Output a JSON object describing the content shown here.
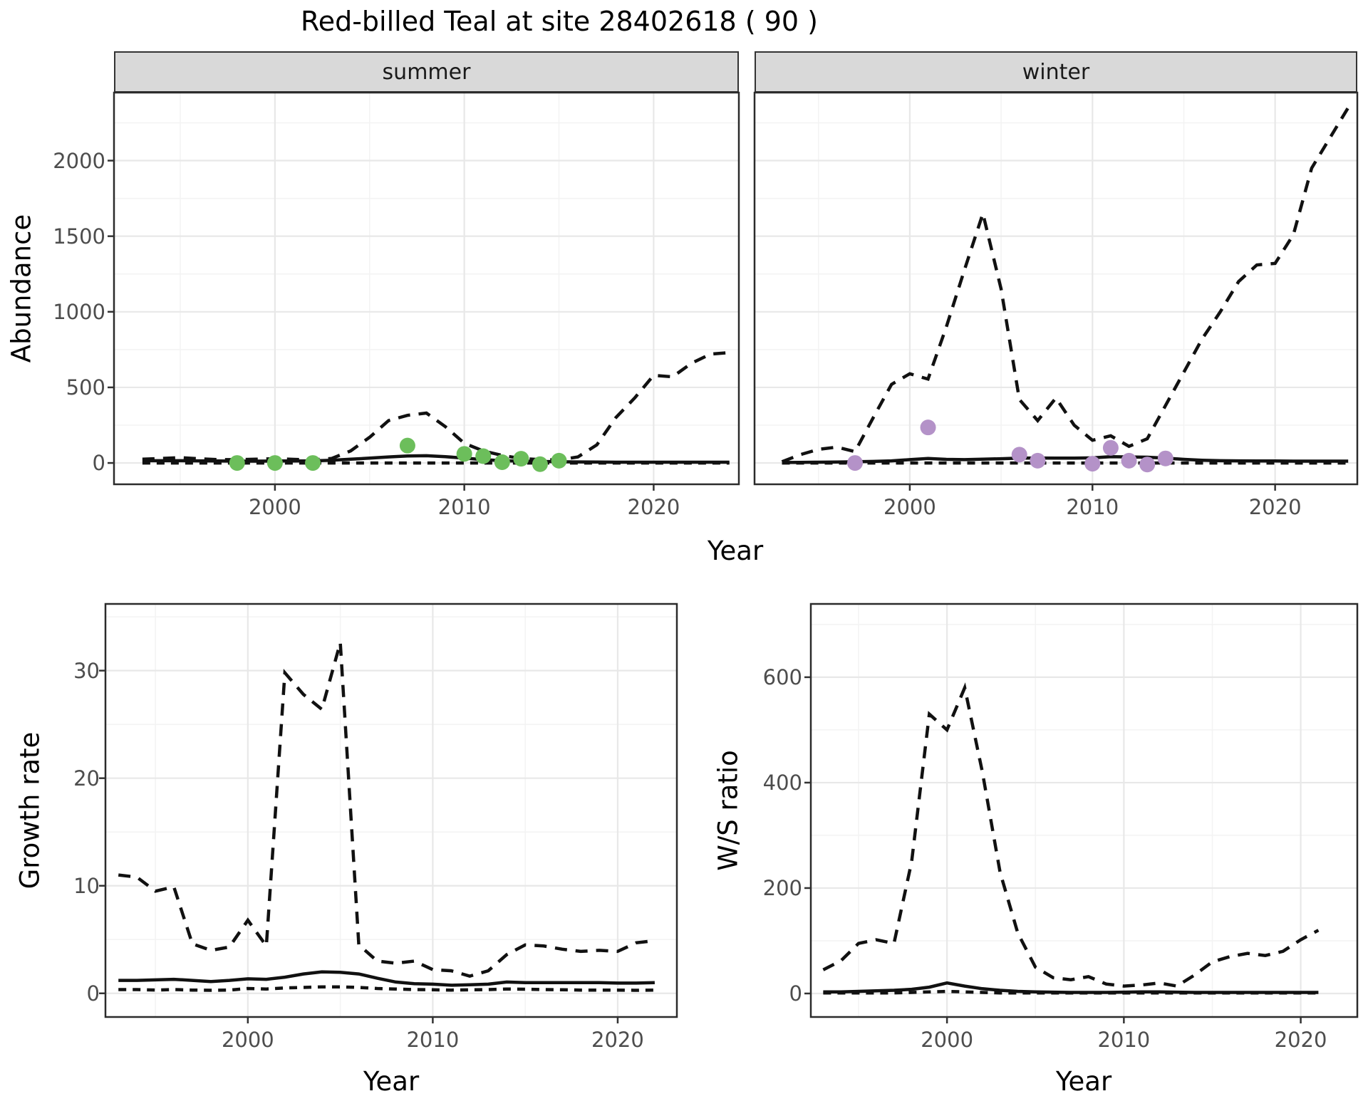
{
  "title": "Red-billed Teal at site 28402618 ( 90 )",
  "colors": {
    "summer_point": "#6CBE5B",
    "winter_point": "#B492C8",
    "line": "#111111",
    "grid_major": "#E8E8E8",
    "grid_minor": "#F3F3F3",
    "strip_bg": "#D9D9D9",
    "panel_border": "#2B2B2B",
    "tick_mark": "#333333",
    "tick_label": "#4D4D4D"
  },
  "chart_data": [
    {
      "type": "line",
      "facet": "summer",
      "xlabel": "Year",
      "ylabel": "Abundance",
      "xlim": [
        1991.5,
        2024.5
      ],
      "ylim": [
        -141,
        2450
      ],
      "x_ticks": [
        2000,
        2010,
        2020
      ],
      "y_ticks": [
        0,
        500,
        1000,
        1500,
        2000
      ],
      "years": [
        1993,
        1994,
        1995,
        1996,
        1997,
        1998,
        1999,
        2000,
        2001,
        2002,
        2003,
        2004,
        2005,
        2006,
        2007,
        2008,
        2009,
        2010,
        2011,
        2012,
        2013,
        2014,
        2015,
        2016,
        2017,
        2018,
        2019,
        2020,
        2021,
        2022,
        2023,
        2024
      ],
      "series": [
        {
          "name": "median",
          "style": "solid",
          "values": [
            15,
            15,
            15,
            14,
            13,
            12,
            12,
            13,
            13,
            14,
            18,
            25,
            32,
            40,
            46,
            48,
            42,
            32,
            22,
            15,
            12,
            10,
            8,
            7,
            6,
            5,
            5,
            5,
            5,
            5,
            5,
            5
          ]
        },
        {
          "name": "upper",
          "style": "dashed",
          "values": [
            25,
            30,
            35,
            28,
            22,
            22,
            25,
            28,
            24,
            20,
            30,
            80,
            170,
            280,
            315,
            330,
            240,
            130,
            80,
            50,
            30,
            22,
            20,
            40,
            120,
            300,
            430,
            580,
            570,
            660,
            720,
            730
          ]
        },
        {
          "name": "lower",
          "style": "dashed-short",
          "values": [
            0,
            0,
            0,
            0,
            0,
            0,
            0,
            0,
            0,
            0,
            0,
            0,
            0,
            0,
            0,
            0,
            0,
            0,
            0,
            0,
            0,
            0,
            0,
            0,
            0,
            0,
            0,
            0,
            0,
            0,
            0,
            0
          ]
        }
      ],
      "points": {
        "color": "#6CBE5B",
        "data": [
          [
            1998,
            0
          ],
          [
            2000,
            0
          ],
          [
            2002,
            0
          ],
          [
            2007,
            115
          ],
          [
            2010,
            60
          ],
          [
            2011,
            45
          ],
          [
            2012,
            5
          ],
          [
            2013,
            28
          ],
          [
            2014,
            -8
          ],
          [
            2015,
            15
          ]
        ]
      }
    },
    {
      "type": "line",
      "facet": "winter",
      "xlabel": "Year",
      "ylabel": "Abundance",
      "xlim": [
        1991.5,
        2024.5
      ],
      "ylim": [
        -141,
        2450
      ],
      "x_ticks": [
        2000,
        2010,
        2020
      ],
      "y_ticks": [
        0,
        500,
        1000,
        1500,
        2000
      ],
      "years": [
        1993,
        1994,
        1995,
        1996,
        1997,
        1998,
        1999,
        2000,
        2001,
        2002,
        2003,
        2004,
        2005,
        2006,
        2007,
        2008,
        2009,
        2010,
        2011,
        2012,
        2013,
        2014,
        2015,
        2016,
        2017,
        2018,
        2019,
        2020,
        2021,
        2022,
        2023,
        2024
      ],
      "series": [
        {
          "name": "median",
          "style": "solid",
          "values": [
            3,
            4,
            5,
            6,
            8,
            10,
            14,
            22,
            30,
            24,
            22,
            25,
            28,
            32,
            33,
            32,
            32,
            34,
            42,
            40,
            38,
            32,
            24,
            18,
            15,
            14,
            13,
            13,
            12,
            12,
            12,
            12
          ]
        },
        {
          "name": "upper",
          "style": "dashed",
          "values": [
            8,
            55,
            90,
            105,
            75,
            300,
            520,
            590,
            555,
            900,
            1280,
            1650,
            1150,
            420,
            280,
            430,
            250,
            150,
            180,
            110,
            160,
            380,
            600,
            820,
            1000,
            1200,
            1310,
            1320,
            1510,
            1950,
            2150,
            2350
          ]
        },
        {
          "name": "lower",
          "style": "dashed-short",
          "values": [
            0,
            0,
            0,
            0,
            0,
            0,
            0,
            0,
            0,
            0,
            0,
            0,
            0,
            0,
            0,
            0,
            0,
            0,
            0,
            0,
            0,
            0,
            0,
            0,
            0,
            0,
            0,
            0,
            0,
            0,
            0,
            0
          ]
        }
      ],
      "points": {
        "color": "#B492C8",
        "data": [
          [
            1997,
            0
          ],
          [
            2001,
            235
          ],
          [
            2006,
            55
          ],
          [
            2007,
            15
          ],
          [
            2010,
            -5
          ],
          [
            2011,
            100
          ],
          [
            2012,
            15
          ],
          [
            2013,
            -10
          ],
          [
            2014,
            30
          ]
        ]
      }
    },
    {
      "type": "line",
      "facet": "",
      "xlabel": "Year",
      "ylabel": "Growth rate",
      "xlim": [
        1992.3,
        2023.2
      ],
      "ylim": [
        -2.2,
        36.2
      ],
      "x_ticks": [
        2000,
        2010,
        2020
      ],
      "y_ticks": [
        0,
        10,
        20,
        30
      ],
      "years": [
        1993,
        1994,
        1995,
        1996,
        1997,
        1998,
        1999,
        2000,
        2001,
        2002,
        2003,
        2004,
        2005,
        2006,
        2007,
        2008,
        2009,
        2010,
        2011,
        2012,
        2013,
        2014,
        2015,
        2016,
        2017,
        2018,
        2019,
        2020,
        2021,
        2022
      ],
      "series": [
        {
          "name": "median",
          "style": "solid",
          "values": [
            1.2,
            1.2,
            1.25,
            1.3,
            1.2,
            1.1,
            1.2,
            1.35,
            1.3,
            1.5,
            1.8,
            2.0,
            1.95,
            1.8,
            1.4,
            1.05,
            0.9,
            0.85,
            0.75,
            0.8,
            0.85,
            1.05,
            1.0,
            1.0,
            1.0,
            1.0,
            1.0,
            0.95,
            0.95,
            1.0
          ]
        },
        {
          "name": "upper",
          "style": "dashed",
          "values": [
            11,
            10.8,
            9.5,
            9.9,
            4.6,
            4.0,
            4.3,
            6.8,
            4.4,
            29.8,
            27.8,
            26.4,
            32.6,
            4.5,
            3.0,
            2.8,
            3.0,
            2.2,
            2.1,
            1.6,
            2.1,
            3.6,
            4.5,
            4.4,
            4.1,
            3.9,
            4.0,
            3.9,
            4.7,
            4.9
          ]
        },
        {
          "name": "lower",
          "style": "dashed-short",
          "values": [
            0.35,
            0.35,
            0.3,
            0.35,
            0.3,
            0.28,
            0.3,
            0.45,
            0.4,
            0.5,
            0.55,
            0.6,
            0.6,
            0.55,
            0.45,
            0.4,
            0.35,
            0.33,
            0.3,
            0.32,
            0.35,
            0.4,
            0.38,
            0.35,
            0.33,
            0.3,
            0.3,
            0.3,
            0.28,
            0.3
          ]
        }
      ],
      "points": null
    },
    {
      "type": "line",
      "facet": "",
      "xlabel": "Year",
      "ylabel": "W/S ratio",
      "xlim": [
        1992.3,
        2023.2
      ],
      "ylim": [
        -44.6,
        739
      ],
      "x_ticks": [
        2000,
        2010,
        2020
      ],
      "y_ticks": [
        0,
        200,
        400,
        600
      ],
      "years": [
        1993,
        1994,
        1995,
        1996,
        1997,
        1998,
        1999,
        2000,
        2001,
        2002,
        2003,
        2004,
        2005,
        2006,
        2007,
        2008,
        2009,
        2010,
        2011,
        2012,
        2013,
        2014,
        2015,
        2016,
        2017,
        2018,
        2019,
        2020,
        2021
      ],
      "series": [
        {
          "name": "median",
          "style": "solid",
          "values": [
            3,
            3,
            4,
            5,
            6,
            8,
            12,
            20,
            14,
            9,
            6,
            4,
            3,
            2.5,
            2,
            2,
            2,
            2.5,
            3,
            3,
            2.5,
            2,
            2,
            2,
            2,
            2,
            2,
            2,
            2
          ]
        },
        {
          "name": "upper",
          "style": "dashed",
          "values": [
            45,
            62,
            95,
            102,
            95,
            250,
            530,
            500,
            580,
            420,
            230,
            115,
            50,
            30,
            26,
            32,
            18,
            14,
            16,
            20,
            14,
            35,
            60,
            70,
            76,
            72,
            80,
            102,
            120
          ]
        },
        {
          "name": "lower",
          "style": "dashed-short",
          "values": [
            1,
            1,
            1,
            1,
            1,
            2,
            3,
            4,
            3,
            2,
            1,
            1,
            1,
            1,
            1,
            1,
            1,
            1,
            1,
            1,
            1,
            1,
            1,
            1,
            1,
            1,
            1,
            1,
            1
          ]
        }
      ],
      "points": null
    }
  ]
}
